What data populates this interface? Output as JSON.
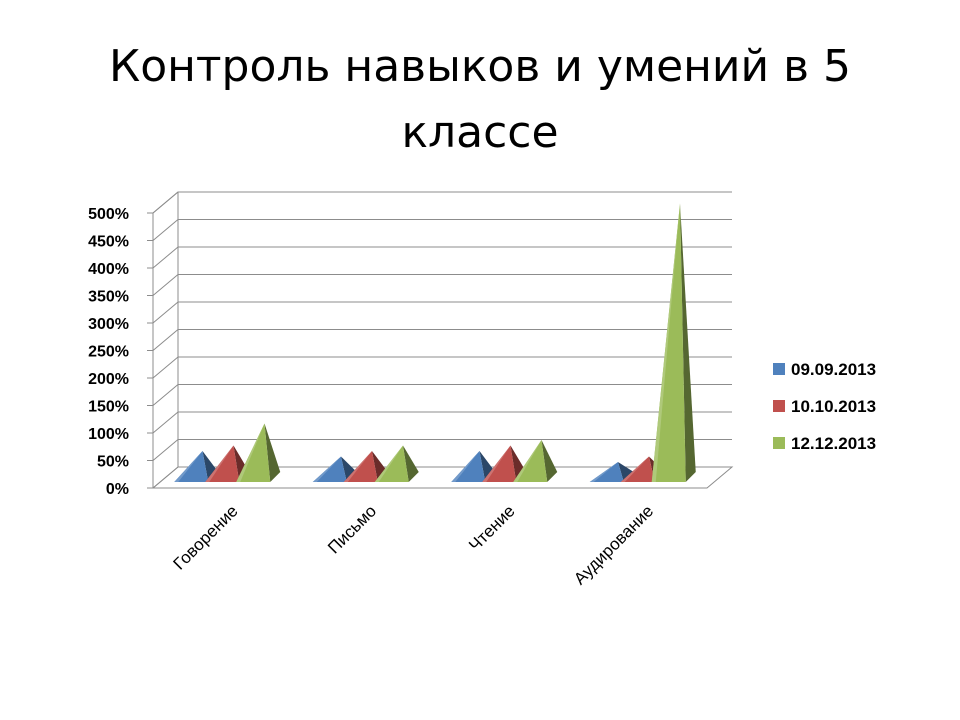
{
  "slide": {
    "title": "Контроль навыков и умений  в 5 классе"
  },
  "chart_data": {
    "type": "bar",
    "shape": "pyramid-3d",
    "categories": [
      "Говорение",
      "Письмо",
      "Чтение",
      "Аудирование"
    ],
    "series": [
      {
        "name": "09.09.2013",
        "color": "#4F81BD",
        "values": [
          50,
          40,
          50,
          30
        ]
      },
      {
        "name": "10.10.2013",
        "color": "#C0504D",
        "values": [
          60,
          50,
          60,
          40
        ]
      },
      {
        "name": "12.12.2013",
        "color": "#9BBB59",
        "values": [
          100,
          60,
          70,
          500
        ]
      }
    ],
    "ylim": [
      0,
      500
    ],
    "ytick_step": 50,
    "ytick_format": "percent",
    "legend": "right",
    "grid": true,
    "title": "",
    "xlabel": "",
    "ylabel": ""
  }
}
